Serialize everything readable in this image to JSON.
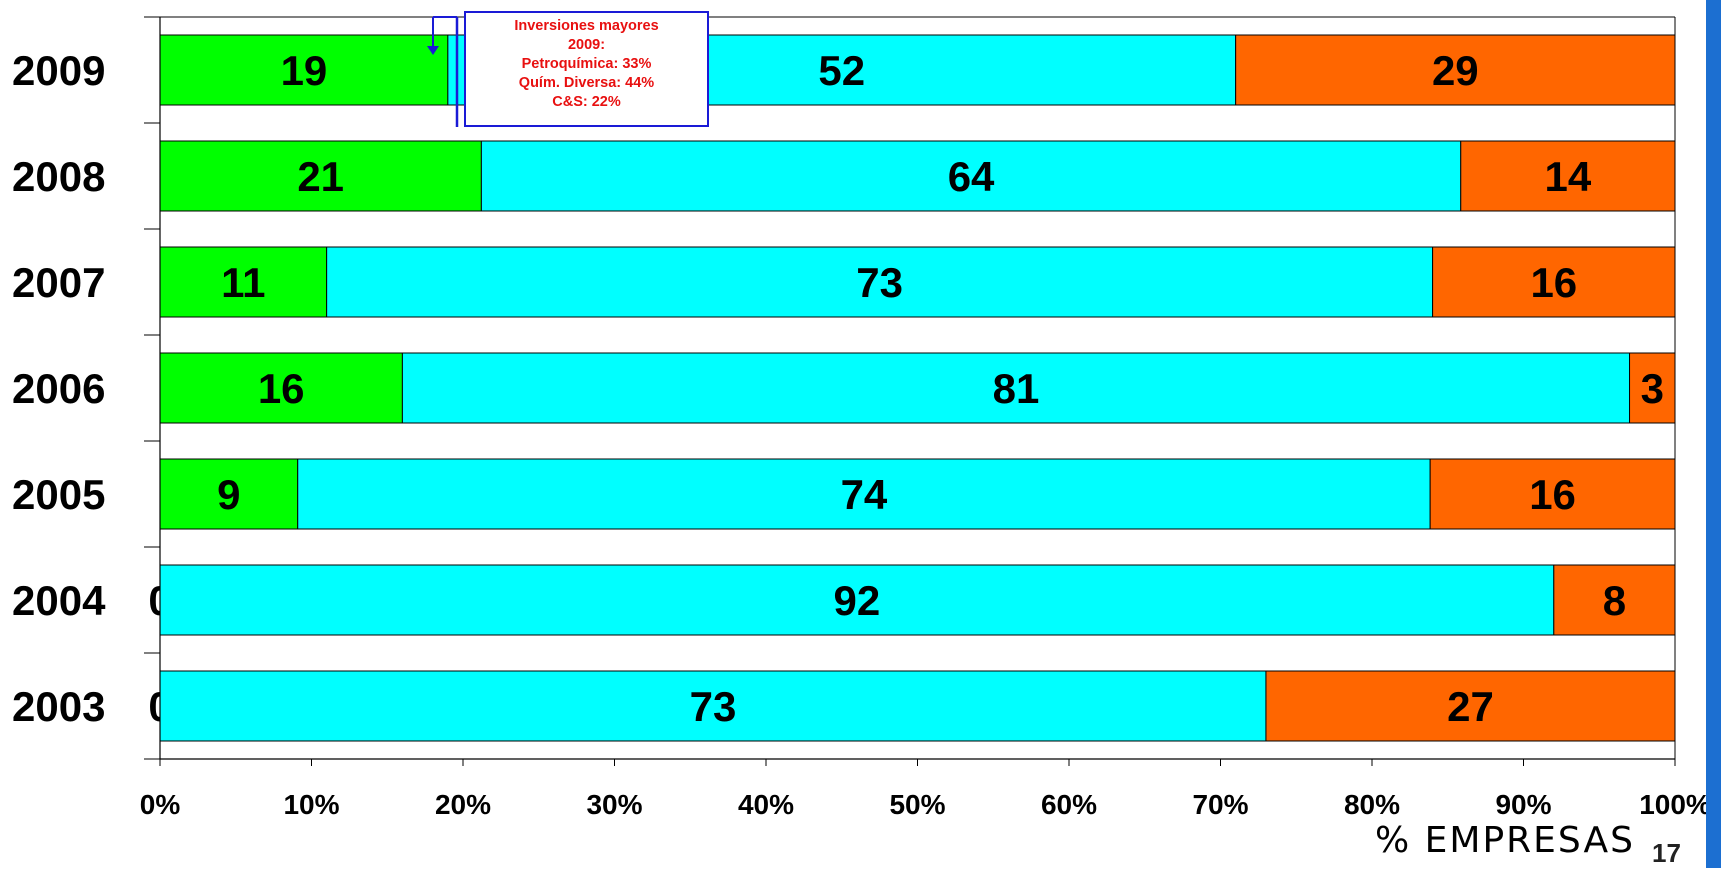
{
  "chart_data": {
    "type": "bar",
    "orientation": "horizontal",
    "stacked": "percent",
    "categories": [
      "2009",
      "2008",
      "2007",
      "2006",
      "2005",
      "2004",
      "2003"
    ],
    "series": [
      {
        "values": [
          19,
          21,
          11,
          16,
          9,
          0,
          0
        ],
        "color": "#00ff00"
      },
      {
        "values": [
          52,
          64,
          73,
          81,
          74,
          92,
          73
        ],
        "color": "#00ffff"
      },
      {
        "values": [
          29,
          14,
          16,
          3,
          16,
          8,
          27
        ],
        "color": "#ff6600"
      }
    ],
    "xlabel": "% EMPRESAS",
    "xlim": [
      0,
      100
    ],
    "xticks": [
      "0%",
      "10%",
      "20%",
      "30%",
      "40%",
      "50%",
      "60%",
      "70%",
      "80%",
      "90%",
      "100%"
    ],
    "legend": "none",
    "grid": false
  },
  "annotation": {
    "lines": [
      "Inversiones mayores",
      "2009:",
      "Petroquímica: 33%",
      "Quím. Diversa: 44%",
      "C&S: 22%"
    ],
    "text_color": "#e81010",
    "border_color": "#1a1ad6"
  },
  "page_number": "17"
}
